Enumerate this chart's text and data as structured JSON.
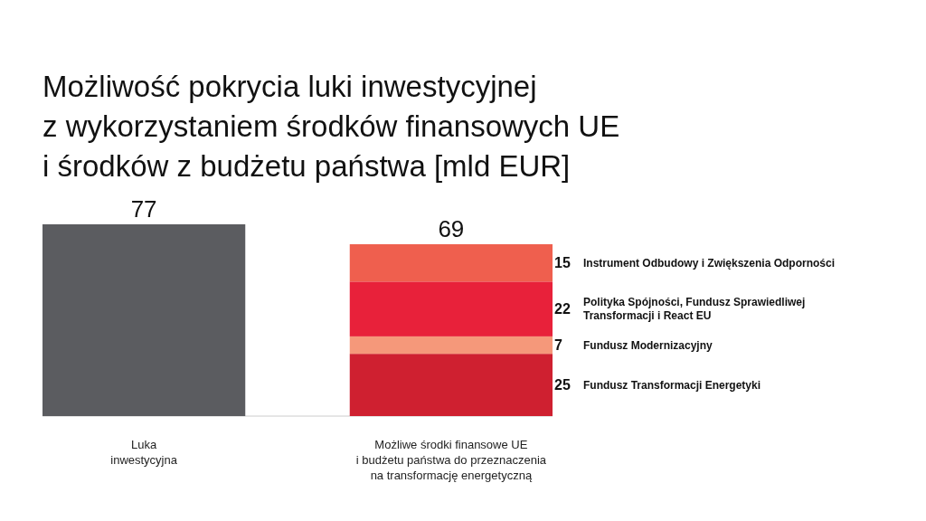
{
  "chart_data": {
    "type": "bar",
    "stacked": true,
    "title": "Możliwość pokrycia luki inwestycyjnej\nz wykorzystaniem środków finansowych UE\ni środków z budżetu państwa [mld EUR]",
    "categories": [
      "Luka\ninwestycyjna",
      "Możliwe środki finansowe UE\ni budżetu państwa do przeznaczenia\nna transformację energetyczną"
    ],
    "series": [
      {
        "color": "#5b5c60",
        "values": [
          77,
          null
        ],
        "value_labels": [
          "77",
          null
        ]
      },
      {
        "name": "Fundusz Transformacji Energetyki",
        "color": "#cf2030",
        "values": [
          null,
          25
        ],
        "value_labels": [
          null,
          "25"
        ]
      },
      {
        "name": "Fundusz Modernizacyjny",
        "color": "#f5987a",
        "values": [
          null,
          7
        ],
        "value_labels": [
          null,
          "7"
        ]
      },
      {
        "name": "Polityka Spójności, Fundusz Sprawiedliwej Transformacji i React EU",
        "color": "#e8213a",
        "values": [
          null,
          22
        ],
        "value_labels": [
          null,
          "22"
        ]
      },
      {
        "name": "Instrument Odbudowy i Zwiększenia Odporności",
        "color": "#ef5f4e",
        "values": [
          null,
          15
        ],
        "value_labels": [
          null,
          "15"
        ]
      }
    ],
    "totals": [
      null,
      "69"
    ]
  }
}
